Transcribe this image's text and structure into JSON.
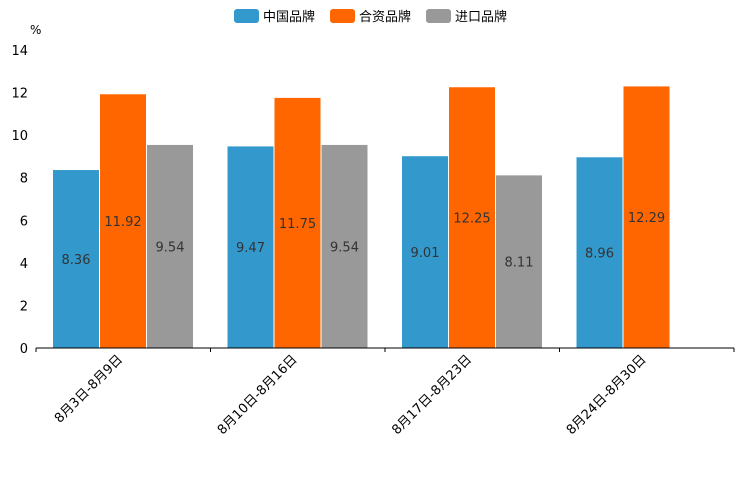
{
  "chart_data": {
    "type": "bar",
    "unit": "%",
    "categories": [
      "8月3日-8月9日",
      "8月10日-8月16日",
      "8月17日-8月23日",
      "8月24日-8月30日"
    ],
    "series": [
      {
        "name": "中国品牌",
        "color": "#3399CC",
        "values": [
          8.36,
          9.47,
          9.01,
          8.96
        ]
      },
      {
        "name": "合资品牌",
        "color": "#FF6600",
        "values": [
          11.92,
          11.75,
          12.25,
          12.29
        ]
      },
      {
        "name": "进口品牌",
        "color": "#999999",
        "values": [
          9.54,
          9.54,
          8.11,
          null
        ]
      }
    ],
    "ylim": [
      0,
      14
    ],
    "yticks": [
      0,
      2,
      4,
      6,
      8,
      10,
      12,
      14
    ],
    "legend_position": "top-center",
    "grid": false
  }
}
